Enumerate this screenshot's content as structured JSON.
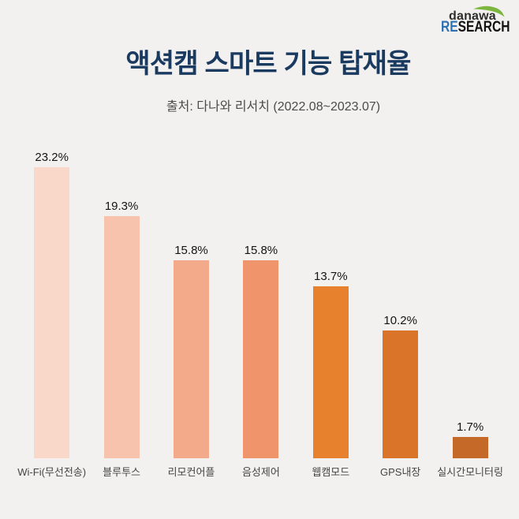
{
  "background": "#f2f1ef",
  "logo": {
    "brand": "danawa",
    "sub_blue": "RE",
    "sub_black": "SEARCH",
    "green": "#7db63f",
    "blue": "#2e71b4"
  },
  "header": {
    "title": "액션캠 스마트 기능 탑재율",
    "subtitle": "출처: 다나와 리서치 (2022.08~2023.07)"
  },
  "chart_data": {
    "type": "bar",
    "title": "액션캠 스마트 기능 탑재율",
    "subtitle": "출처: 다나와 리서치 (2022.08~2023.07)",
    "categories": [
      "Wi-Fi(무선전송)",
      "블루투스",
      "리모컨어플",
      "음성제어",
      "웹캠모드",
      "GPS내장",
      "실시간모니터링"
    ],
    "values": [
      23.2,
      19.3,
      15.8,
      15.8,
      13.7,
      10.2,
      1.7
    ],
    "value_labels": [
      "23.2%",
      "19.3%",
      "15.8%",
      "15.8%",
      "13.7%",
      "10.2%",
      "1.7%"
    ],
    "bar_colors": [
      "#f9d8c9",
      "#f7c3ac",
      "#f3aa8b",
      "#ef946b",
      "#e8812e",
      "#da7428",
      "#c46927"
    ],
    "xlabel": "",
    "ylabel": "",
    "ylim": [
      0,
      25
    ],
    "grid": false,
    "legend": false,
    "value_label_color": "#141414",
    "category_label_color": "#454545"
  }
}
